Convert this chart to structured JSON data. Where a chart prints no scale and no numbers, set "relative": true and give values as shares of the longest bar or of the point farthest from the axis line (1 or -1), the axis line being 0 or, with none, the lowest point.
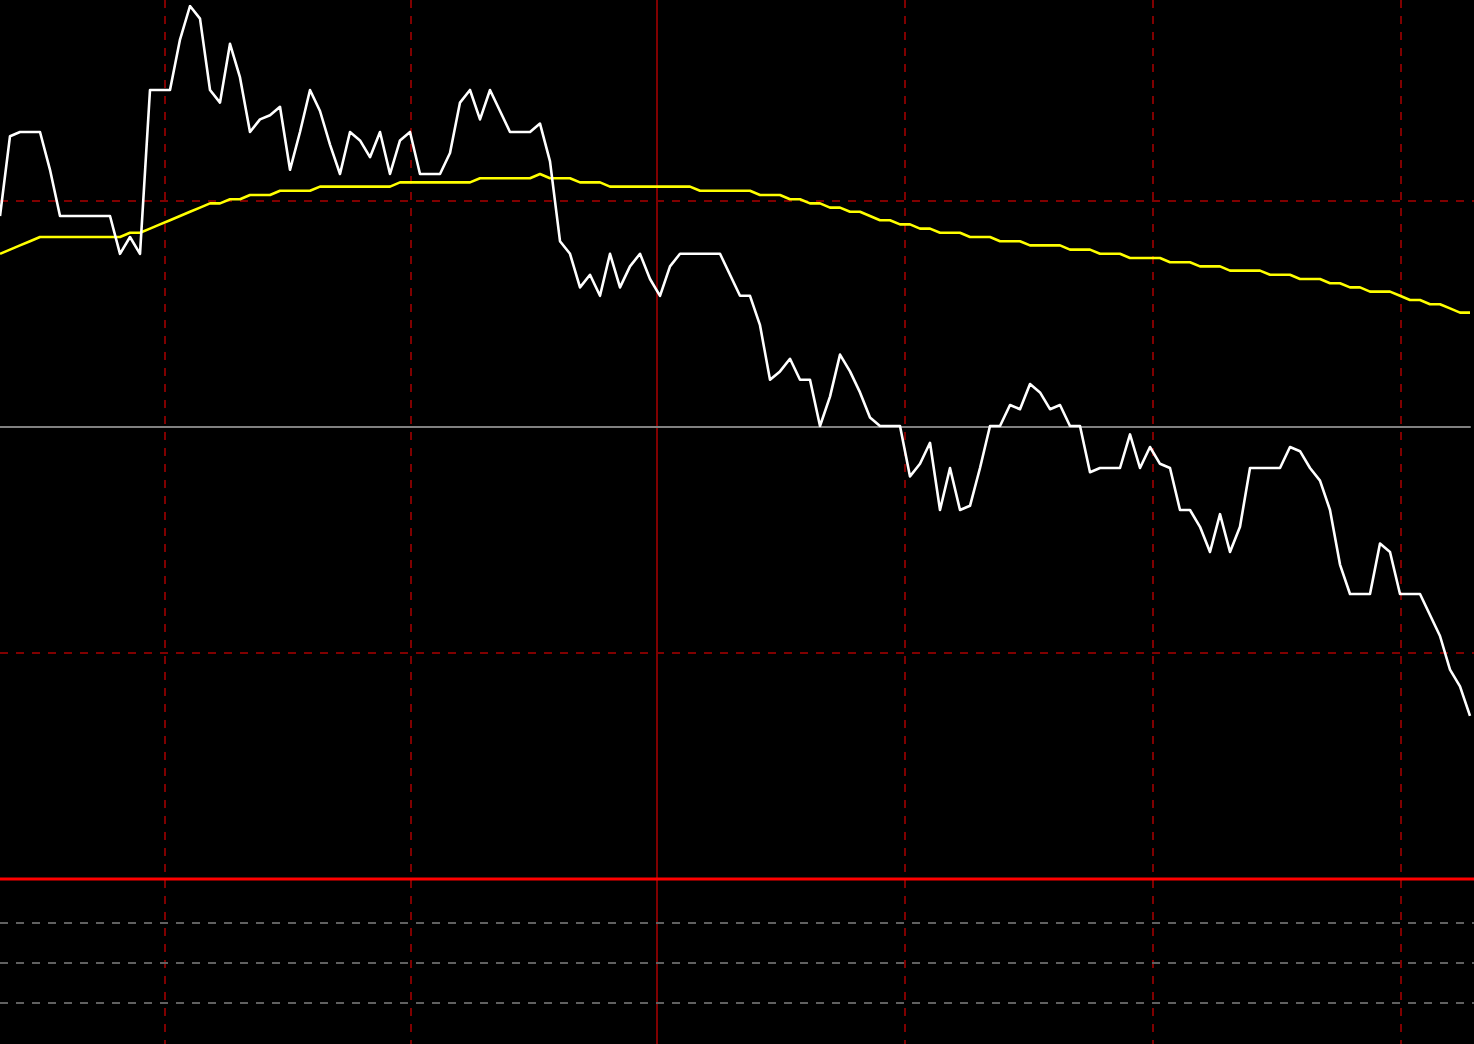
{
  "chart_data": {
    "type": "line",
    "relative": true,
    "tick_labels": false,
    "grid": true,
    "marker": "none",
    "line_style": "solid",
    "categories": [
      null,
      null,
      null,
      null,
      null,
      null,
      null,
      null,
      null,
      null,
      null,
      null,
      null,
      null,
      null,
      null,
      null,
      null,
      null,
      null,
      null,
      null,
      null,
      null,
      null,
      null,
      null,
      null,
      null,
      null,
      null,
      null,
      null,
      null,
      null,
      null,
      null,
      null,
      null,
      null,
      null,
      null,
      null,
      null,
      null,
      null,
      null,
      null,
      null,
      null,
      null,
      null,
      null,
      null,
      null,
      null,
      null,
      null,
      null,
      null,
      null,
      null,
      null,
      null,
      null,
      null,
      null,
      null,
      null,
      null,
      null,
      null,
      null,
      null,
      null,
      null,
      null,
      null,
      null,
      null,
      null,
      null,
      null,
      null,
      null,
      null,
      null,
      null,
      null,
      null,
      null,
      null,
      null,
      null,
      null,
      null,
      null,
      null,
      null,
      null,
      null,
      null,
      null,
      null,
      null,
      null,
      null,
      null,
      null,
      null,
      null,
      null,
      null,
      null,
      null,
      null,
      null,
      null,
      null,
      null,
      null,
      null,
      null,
      null,
      null,
      null,
      null,
      null,
      null,
      null,
      null,
      null,
      null,
      null,
      null,
      null,
      null,
      null,
      null,
      null,
      null,
      null,
      null,
      null,
      null,
      null,
      null,
      null
    ],
    "series": [
      {
        "color": "#ffffff",
        "values": [
          0.5,
          0.69,
          0.7,
          0.7,
          0.7,
          0.61,
          0.5,
          0.5,
          0.5,
          0.5,
          0.5,
          0.5,
          0.41,
          0.45,
          0.41,
          0.8,
          0.8,
          0.8,
          0.92,
          1,
          0.97,
          0.8,
          0.77,
          0.91,
          0.83,
          0.7,
          0.73,
          0.74,
          0.76,
          0.61,
          0.7,
          0.8,
          0.75,
          0.67,
          0.6,
          0.7,
          0.68,
          0.64,
          0.7,
          0.6,
          0.68,
          0.7,
          0.6,
          0.6,
          0.6,
          0.65,
          0.77,
          0.8,
          0.73,
          0.8,
          0.75,
          0.7,
          0.7,
          0.7,
          0.72,
          0.63,
          0.44,
          0.41,
          0.33,
          0.36,
          0.31,
          0.41,
          0.33,
          0.38,
          0.41,
          0.35,
          0.31,
          0.38,
          0.41,
          0.41,
          0.41,
          0.41,
          0.41,
          0.36,
          0.31,
          0.31,
          0.24,
          0.11,
          0.13,
          0.16,
          0.11,
          0.11,
          0,
          0.07,
          0.17,
          0.13,
          0.08,
          0.02,
          0,
          0,
          0,
          -0.12,
          -0.09,
          -0.04,
          -0.2,
          -0.1,
          -0.2,
          -0.19,
          -0.1,
          0,
          0,
          0.05,
          0.04,
          0.1,
          0.08,
          0.04,
          0.05,
          0,
          0,
          -0.11,
          -0.1,
          -0.1,
          -0.1,
          -0.02,
          -0.1,
          -0.05,
          -0.09,
          -0.1,
          -0.2,
          -0.2,
          -0.24,
          -0.3,
          -0.21,
          -0.3,
          -0.24,
          -0.1,
          -0.1,
          -0.1,
          -0.1,
          -0.05,
          -0.06,
          -0.1,
          -0.13,
          -0.2,
          -0.33,
          -0.4,
          -0.4,
          -0.4,
          -0.28,
          -0.3,
          -0.4,
          -0.4,
          -0.4,
          -0.45,
          -0.5,
          -0.58,
          -0.62,
          -0.69
        ]
      },
      {
        "color": "#ffff00",
        "values": [
          0.41,
          0.42,
          0.43,
          0.44,
          0.45,
          0.45,
          0.45,
          0.45,
          0.45,
          0.45,
          0.45,
          0.45,
          0.45,
          0.46,
          0.46,
          0.47,
          0.48,
          0.49,
          0.5,
          0.51,
          0.52,
          0.53,
          0.53,
          0.54,
          0.54,
          0.55,
          0.55,
          0.55,
          0.56,
          0.56,
          0.56,
          0.56,
          0.57,
          0.57,
          0.57,
          0.57,
          0.57,
          0.57,
          0.57,
          0.57,
          0.58,
          0.58,
          0.58,
          0.58,
          0.58,
          0.58,
          0.58,
          0.58,
          0.59,
          0.59,
          0.59,
          0.59,
          0.59,
          0.59,
          0.6,
          0.59,
          0.59,
          0.59,
          0.58,
          0.58,
          0.58,
          0.57,
          0.57,
          0.57,
          0.57,
          0.57,
          0.57,
          0.57,
          0.57,
          0.57,
          0.56,
          0.56,
          0.56,
          0.56,
          0.56,
          0.56,
          0.55,
          0.55,
          0.55,
          0.54,
          0.54,
          0.53,
          0.53,
          0.52,
          0.52,
          0.51,
          0.51,
          0.5,
          0.49,
          0.49,
          0.48,
          0.48,
          0.47,
          0.47,
          0.46,
          0.46,
          0.46,
          0.45,
          0.45,
          0.45,
          0.44,
          0.44,
          0.44,
          0.43,
          0.43,
          0.43,
          0.43,
          0.42,
          0.42,
          0.42,
          0.41,
          0.41,
          0.41,
          0.4,
          0.4,
          0.4,
          0.4,
          0.39,
          0.39,
          0.39,
          0.38,
          0.38,
          0.38,
          0.37,
          0.37,
          0.37,
          0.37,
          0.36,
          0.36,
          0.36,
          0.35,
          0.35,
          0.35,
          0.34,
          0.34,
          0.33,
          0.33,
          0.32,
          0.32,
          0.32,
          0.31,
          0.3,
          0.3,
          0.29,
          0.29,
          0.28,
          0.27,
          0.27
        ]
      }
    ]
  }
}
